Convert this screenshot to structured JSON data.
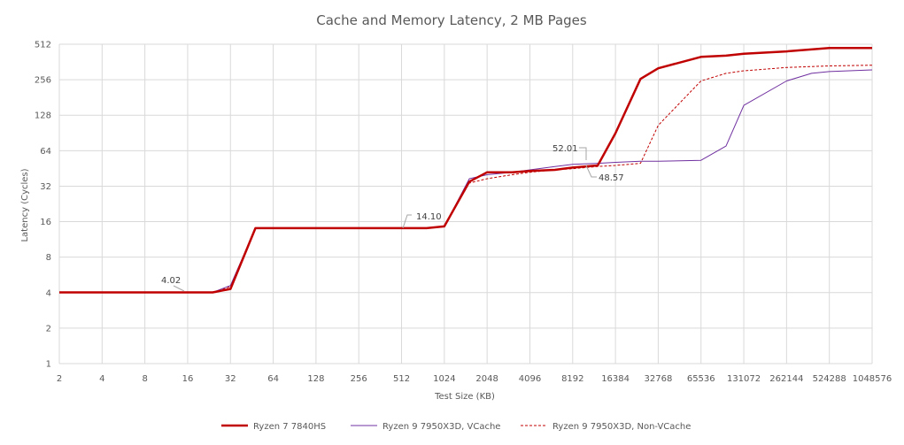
{
  "chart_data": {
    "type": "line",
    "title": "Cache and Memory Latency, 2 MB Pages",
    "xlabel": "Test Size (KB)",
    "ylabel": "Latency (Cycles)",
    "x_scale": "log2",
    "y_scale": "log2",
    "xlim": [
      2,
      1048576
    ],
    "ylim": [
      1,
      512
    ],
    "x_ticks": [
      "2",
      "4",
      "8",
      "16",
      "32",
      "64",
      "128",
      "256",
      "512",
      "1024",
      "2048",
      "4096",
      "8192",
      "16384",
      "32768",
      "65536",
      "131072",
      "262144",
      "524288",
      "1048576"
    ],
    "y_ticks": [
      "1",
      "2",
      "4",
      "8",
      "16",
      "32",
      "64",
      "128",
      "256",
      "512"
    ],
    "grid": true,
    "legend_position": "bottom",
    "colors": {
      "7840hs": "#c00000",
      "vcache": "#7030a0",
      "nonvcache": "#c00000"
    },
    "series": [
      {
        "name": "Ryzen 7 7840HS",
        "style": "solid-thick",
        "x": [
          2,
          4,
          8,
          16,
          24,
          32,
          48,
          64,
          128,
          256,
          512,
          768,
          1024,
          1536,
          2048,
          3072,
          4096,
          6144,
          8192,
          12288,
          16384,
          24576,
          32768,
          65536,
          98304,
          131072,
          262144,
          524288,
          1048576
        ],
        "y": [
          4.02,
          4.02,
          4.02,
          4.02,
          4.02,
          4.3,
          14.1,
          14.1,
          14.1,
          14.1,
          14.1,
          14.1,
          14.6,
          35,
          42,
          42,
          43,
          44,
          46,
          48,
          90,
          260,
          320,
          400,
          410,
          425,
          445,
          475,
          475
        ]
      },
      {
        "name": "Ryzen 9 7950X3D, VCache",
        "style": "solid-thin",
        "x": [
          2,
          4,
          8,
          16,
          24,
          32,
          48,
          64,
          128,
          256,
          512,
          768,
          1024,
          1536,
          2048,
          3072,
          4096,
          6144,
          8192,
          12288,
          16384,
          24576,
          32768,
          65536,
          98304,
          131072,
          262144,
          393216,
          524288,
          1048576
        ],
        "y": [
          4.02,
          4.02,
          4.02,
          4.02,
          4.02,
          4.6,
          14.1,
          14.1,
          14.1,
          14.1,
          14.1,
          14.1,
          14.6,
          37,
          40,
          42,
          44,
          47,
          49,
          50,
          51,
          52,
          52,
          53,
          70,
          155,
          250,
          290,
          300,
          310
        ]
      },
      {
        "name": "Ryzen 9 7950X3D, Non-VCache",
        "style": "dashed",
        "x": [
          2,
          4,
          8,
          16,
          24,
          32,
          48,
          64,
          128,
          256,
          512,
          768,
          1024,
          1536,
          2048,
          3072,
          4096,
          6144,
          8192,
          12288,
          16384,
          24576,
          32768,
          65536,
          98304,
          131072,
          262144,
          524288,
          1048576
        ],
        "y": [
          4.02,
          4.02,
          4.02,
          4.02,
          4.02,
          4.5,
          14.1,
          14.1,
          14.1,
          14.1,
          14.1,
          14.1,
          14.6,
          34,
          37,
          40,
          42,
          44,
          45,
          47,
          48,
          50,
          105,
          250,
          290,
          305,
          325,
          335,
          340
        ]
      }
    ],
    "annotations": [
      {
        "text": "4.02",
        "x": 16,
        "y": 4.02
      },
      {
        "text": "14.10",
        "x": 512,
        "y": 14.1
      },
      {
        "text": "52.01",
        "x": 12288,
        "y": 52.01
      },
      {
        "text": "48.57",
        "x": 12288,
        "y": 48.57
      }
    ]
  }
}
